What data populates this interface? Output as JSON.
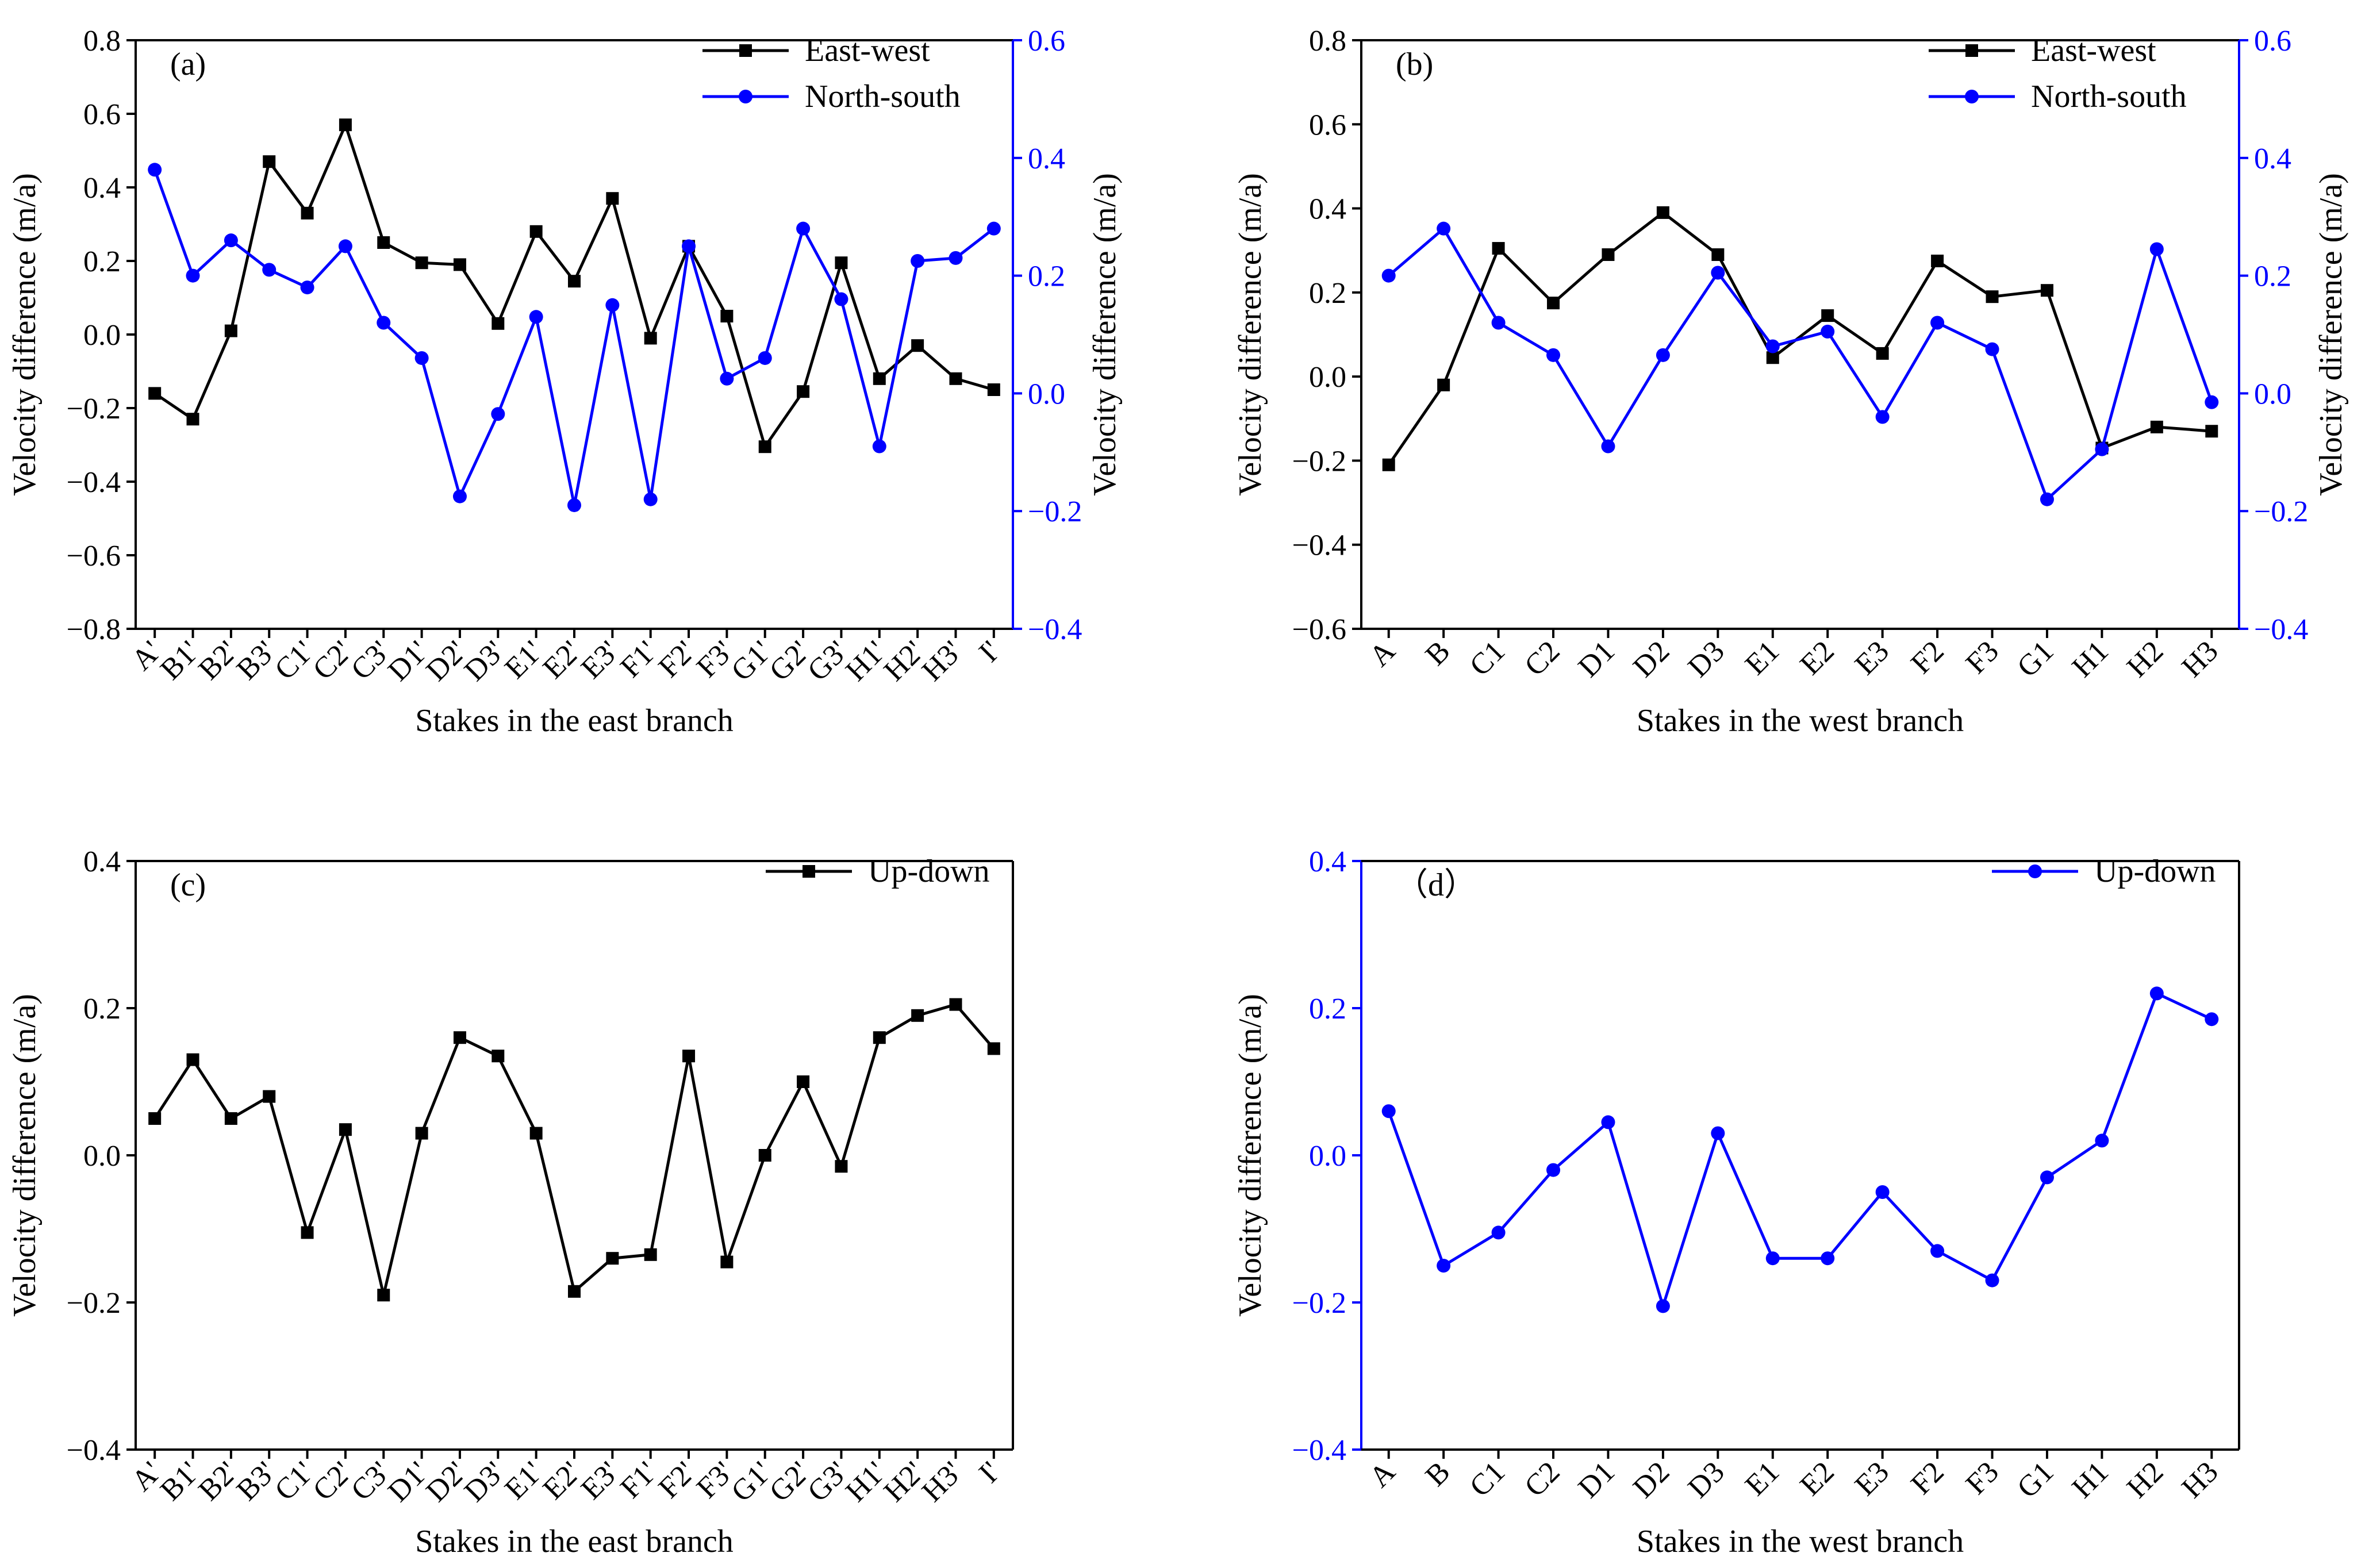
{
  "colors": {
    "black": "#000000",
    "blue": "#0000ff"
  },
  "chart_data": [
    {
      "type": "line",
      "panel_label": "(a)",
      "xlabel": "Stakes in the east branch",
      "ylabel": "Velocity difference (m/a)",
      "ylabel_right": "Velocity difference (m/a)",
      "categories": [
        "A'",
        "B1'",
        "B2'",
        "B3'",
        "C1'",
        "C2'",
        "C3'",
        "D1'",
        "D2'",
        "D3'",
        "E1'",
        "E2'",
        "E3'",
        "F1'",
        "F2'",
        "F3'",
        "G1'",
        "G2'",
        "G3'",
        "H1'",
        "H2'",
        "H3'",
        "I'"
      ],
      "ylim": [
        -0.8,
        0.8
      ],
      "yticks": [
        -0.8,
        -0.6,
        -0.4,
        -0.2,
        0.0,
        0.2,
        0.4,
        0.6,
        0.8
      ],
      "ytick_labels": [
        "−0.8",
        "−0.6",
        "−0.4",
        "−0.2",
        "0.0",
        "0.2",
        "0.4",
        "0.6",
        "0.8"
      ],
      "ylim_right": [
        -0.4,
        0.6
      ],
      "yticks_right": [
        -0.4,
        -0.2,
        0.0,
        0.2,
        0.4,
        0.6
      ],
      "ytick_labels_right": [
        "−0.4",
        "−0.2",
        "0.0",
        "0.2",
        "0.4",
        "0.6"
      ],
      "legend_position": "top-right",
      "series": [
        {
          "name": "East-west",
          "axis": "left",
          "color": "black",
          "marker": "square",
          "values": [
            -0.16,
            -0.23,
            0.01,
            0.47,
            0.33,
            0.57,
            0.25,
            0.195,
            0.19,
            0.03,
            0.28,
            0.145,
            0.37,
            -0.01,
            0.24,
            0.05,
            -0.305,
            -0.155,
            0.195,
            -0.12,
            -0.03,
            -0.12,
            -0.15
          ]
        },
        {
          "name": "North-south",
          "axis": "right",
          "color": "blue",
          "marker": "circle",
          "values": [
            0.38,
            0.2,
            0.26,
            0.21,
            0.18,
            0.25,
            0.12,
            0.06,
            -0.175,
            -0.035,
            0.13,
            -0.19,
            0.15,
            -0.18,
            0.25,
            0.025,
            0.06,
            0.28,
            0.16,
            -0.09,
            0.225,
            0.23,
            0.28
          ]
        }
      ]
    },
    {
      "type": "line",
      "panel_label": "(b)",
      "xlabel": "Stakes in the west branch",
      "ylabel": "Velocity difference (m/a)",
      "ylabel_right": "Velocity difference (m/a)",
      "categories": [
        "A",
        "B",
        "C1",
        "C2",
        "D1",
        "D2",
        "D3",
        "E1",
        "E2",
        "E3",
        "F2",
        "F3",
        "G1",
        "H1",
        "H2",
        "H3"
      ],
      "ylim": [
        -0.6,
        0.8
      ],
      "yticks": [
        -0.6,
        -0.4,
        -0.2,
        0.0,
        0.2,
        0.4,
        0.6,
        0.8
      ],
      "ytick_labels": [
        "−0.6",
        "−0.4",
        "−0.2",
        "0.0",
        "0.2",
        "0.4",
        "0.6",
        "0.8"
      ],
      "ylim_right": [
        -0.4,
        0.6
      ],
      "yticks_right": [
        -0.4,
        -0.2,
        0.0,
        0.2,
        0.4,
        0.6
      ],
      "ytick_labels_right": [
        "−0.4",
        "−0.2",
        "0.0",
        "0.2",
        "0.4",
        "0.6"
      ],
      "legend_position": "top-right",
      "series": [
        {
          "name": "East-west",
          "axis": "left",
          "color": "black",
          "marker": "square",
          "values": [
            -0.21,
            -0.02,
            0.305,
            0.175,
            0.29,
            0.39,
            0.29,
            0.045,
            0.145,
            0.055,
            0.275,
            0.19,
            0.205,
            -0.17,
            -0.12,
            -0.13
          ]
        },
        {
          "name": "North-south",
          "axis": "right",
          "color": "blue",
          "marker": "circle",
          "values": [
            0.2,
            0.28,
            0.12,
            0.065,
            -0.09,
            0.065,
            0.205,
            0.08,
            0.105,
            -0.04,
            0.12,
            0.075,
            -0.18,
            -0.095,
            0.245,
            -0.015
          ]
        }
      ]
    },
    {
      "type": "line",
      "panel_label": "(c)",
      "xlabel": "Stakes in the east branch",
      "ylabel": "Velocity difference (m/a)",
      "categories": [
        "A'",
        "B1'",
        "B2'",
        "B3'",
        "C1'",
        "C2'",
        "C3'",
        "D1'",
        "D2'",
        "D3'",
        "E1'",
        "E2'",
        "E3'",
        "F1'",
        "F2'",
        "F3'",
        "G1'",
        "G2'",
        "G3'",
        "H1'",
        "H2'",
        "H3'",
        "I'"
      ],
      "ylim": [
        -0.4,
        0.4
      ],
      "yticks": [
        -0.4,
        -0.2,
        0.0,
        0.2,
        0.4
      ],
      "ytick_labels": [
        "−0.4",
        "−0.2",
        "0.0",
        "0.2",
        "0.4"
      ],
      "legend_position": "top-right",
      "series": [
        {
          "name": "Up-down",
          "axis": "left",
          "color": "black",
          "marker": "square",
          "values": [
            0.05,
            0.13,
            0.05,
            0.08,
            -0.105,
            0.035,
            -0.19,
            0.03,
            0.16,
            0.135,
            0.03,
            -0.185,
            -0.14,
            -0.135,
            0.135,
            -0.145,
            0.0,
            0.1,
            -0.015,
            0.16,
            0.19,
            0.205,
            0.145
          ]
        }
      ]
    },
    {
      "type": "line",
      "panel_label": "（d）",
      "xlabel": "Stakes in the west branch",
      "ylabel": "Velocity difference (m/a)",
      "categories": [
        "A",
        "B",
        "C1",
        "C2",
        "D1",
        "D2",
        "D3",
        "E1",
        "E2",
        "E3",
        "F2",
        "F3",
        "G1",
        "H1",
        "H2",
        "H3"
      ],
      "ylim": [
        -0.4,
        0.4
      ],
      "yticks": [
        -0.4,
        -0.2,
        0.0,
        0.2,
        0.4
      ],
      "ytick_labels": [
        "−0.4",
        "−0.2",
        "0.0",
        "0.2",
        "0.4"
      ],
      "legend_position": "top-right",
      "series": [
        {
          "name": "Up-down",
          "axis": "left",
          "color": "blue",
          "marker": "circle",
          "values": [
            0.06,
            -0.15,
            -0.105,
            -0.02,
            0.045,
            -0.205,
            0.03,
            -0.14,
            -0.14,
            -0.05,
            -0.13,
            -0.17,
            -0.03,
            0.02,
            0.22,
            0.185
          ]
        }
      ]
    }
  ]
}
